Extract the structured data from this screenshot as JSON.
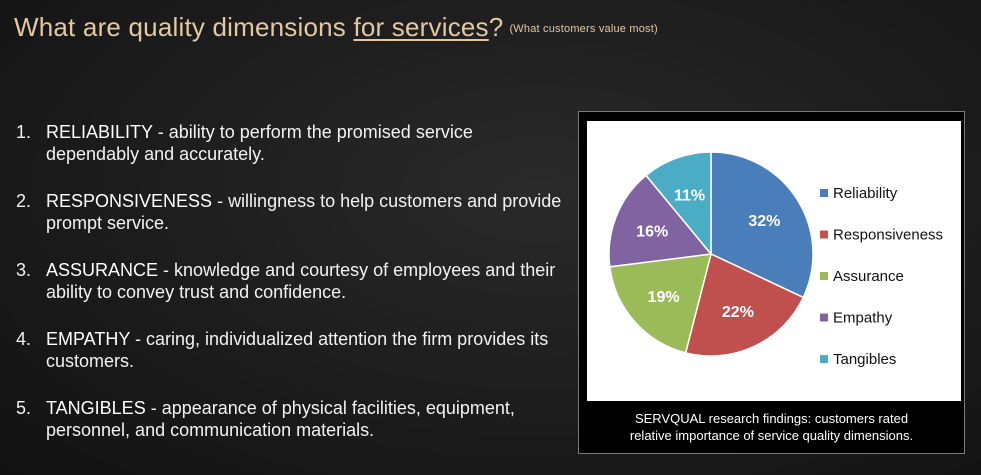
{
  "title": {
    "prefix": "What are quality dimensions ",
    "underlined": "for services",
    "suffix": "?",
    "subtitle": "(What customers value most)"
  },
  "dimensions": [
    {
      "number": "1.",
      "term": "RELIABILITY",
      "separator": " - ",
      "description": "ability to perform the promised service dependably and accurately."
    },
    {
      "number": "2.",
      "term": "RESPONSIVENESS",
      "separator": " - ",
      "description": "willingness to help customers and provide prompt service."
    },
    {
      "number": "3.",
      "term": "ASSURANCE",
      "separator": " - ",
      "description": "knowledge and courtesy of employees and their ability to convey trust and confidence."
    },
    {
      "number": "4.",
      "term": "EMPATHY",
      "separator": " - ",
      "description": "caring, individualized attention the firm provides its customers."
    },
    {
      "number": "5.",
      "term": "TANGIBLES",
      "separator": " - ",
      "description": "appearance of physical facilities, equipment, personnel, and communication materials."
    }
  ],
  "chart_data": {
    "type": "pie",
    "title": "",
    "categories": [
      "Reliability",
      "Responsiveness",
      "Assurance",
      "Empathy",
      "Tangibles"
    ],
    "values": [
      32,
      22,
      19,
      16,
      11
    ],
    "labels": [
      "32%",
      "22%",
      "19%",
      "16%",
      "11%"
    ],
    "colors": [
      "#4a7ebb",
      "#c0504d",
      "#9bbb59",
      "#8064a2",
      "#4bacc6"
    ],
    "legend_position": "right"
  },
  "caption": {
    "line1": "SERVQUAL research findings: customers rated",
    "line2": "relative importance of service quality dimensions."
  }
}
